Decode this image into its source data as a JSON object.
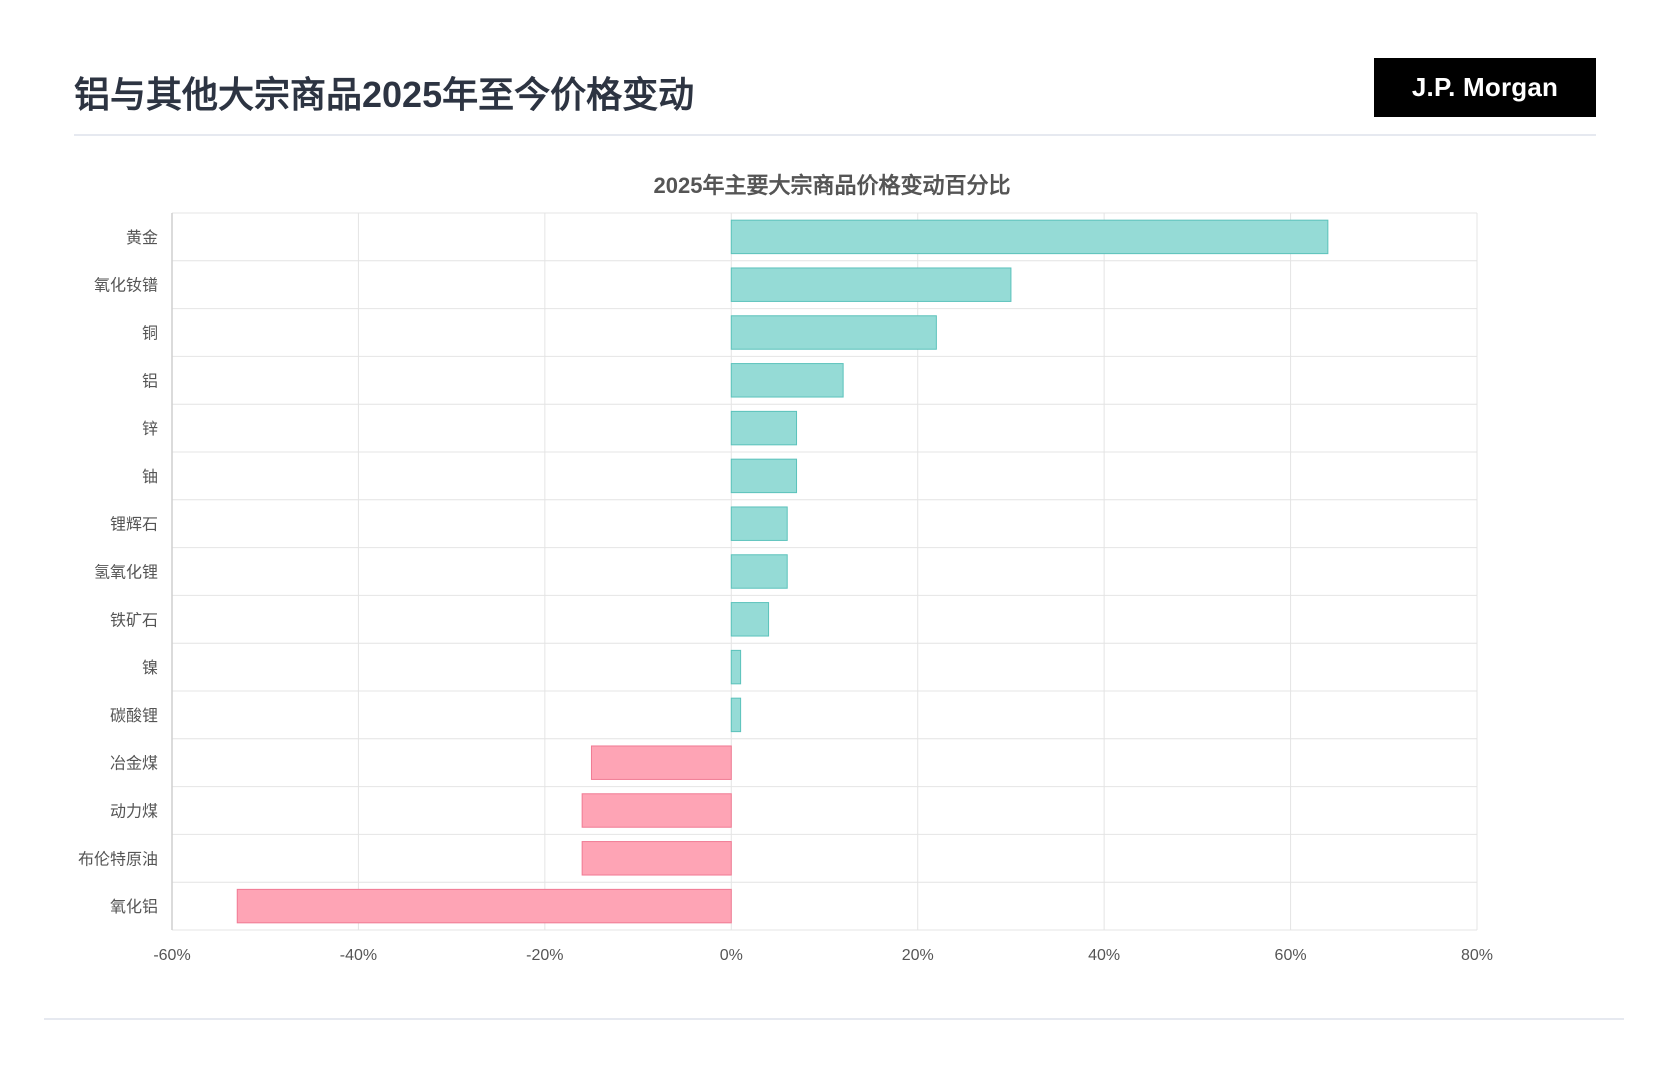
{
  "header": {
    "title": "铝与其他大宗商品2025年至今价格变动",
    "brand": "J.P. Morgan"
  },
  "colors": {
    "positive_fill": "#95dbd6",
    "positive_stroke": "#5bc2bb",
    "negative_fill": "#fea4b5",
    "negative_stroke": "#f07a93",
    "grid": "#e4e4e4",
    "text": "#555555",
    "title": "#555555"
  },
  "chart_data": {
    "type": "bar",
    "orientation": "horizontal",
    "title": "2025年主要大宗商品价格变动百分比",
    "xlabel": "",
    "ylabel": "",
    "categories": [
      "黄金",
      "氧化钕镨",
      "铜",
      "铝",
      "锌",
      "铀",
      "锂辉石",
      "氢氧化锂",
      "铁矿石",
      "镍",
      "碳酸锂",
      "冶金煤",
      "动力煤",
      "布伦特原油",
      "氧化铝"
    ],
    "values": [
      64,
      30,
      22,
      12,
      7,
      7,
      6,
      6,
      4,
      1,
      1,
      -15,
      -16,
      -16,
      -53
    ],
    "xlim": [
      -60,
      80
    ],
    "xticks": [
      -60,
      -40,
      -20,
      0,
      20,
      40,
      60,
      80
    ],
    "tick_format": "percent",
    "grid": true,
    "legend": "none"
  }
}
